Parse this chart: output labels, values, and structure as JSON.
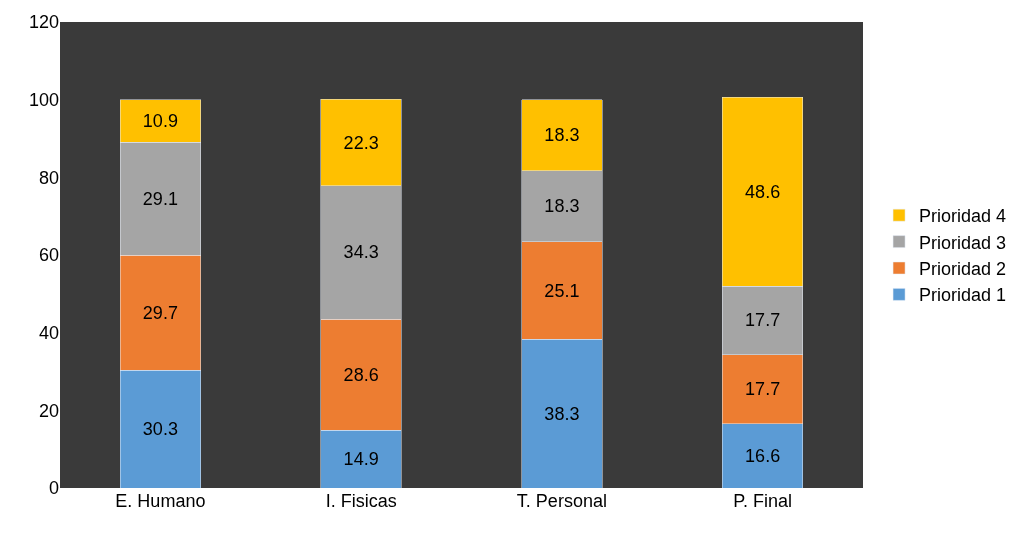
{
  "chart_data": {
    "type": "bar",
    "stacked": true,
    "categories": [
      "E. Humano",
      "I. Fisicas",
      "T. Personal",
      "P. Final"
    ],
    "series": [
      {
        "name": "Prioridad 1",
        "color": "#5b9bd5",
        "values": [
          30.3,
          14.9,
          38.3,
          16.6
        ]
      },
      {
        "name": "Prioridad 2",
        "color": "#ed7d31",
        "values": [
          29.7,
          28.6,
          25.1,
          17.7
        ]
      },
      {
        "name": "Prioridad 3",
        "color": "#a5a5a5",
        "values": [
          29.1,
          34.3,
          18.3,
          17.7
        ]
      },
      {
        "name": "Prioridad 4",
        "color": "#ffc000",
        "values": [
          10.9,
          22.3,
          18.3,
          48.6
        ]
      }
    ],
    "ylim": [
      0,
      120
    ],
    "yticks": [
      0,
      20,
      40,
      60,
      80,
      100,
      120
    ],
    "grid": false,
    "legend": "right",
    "data_labels": true
  }
}
